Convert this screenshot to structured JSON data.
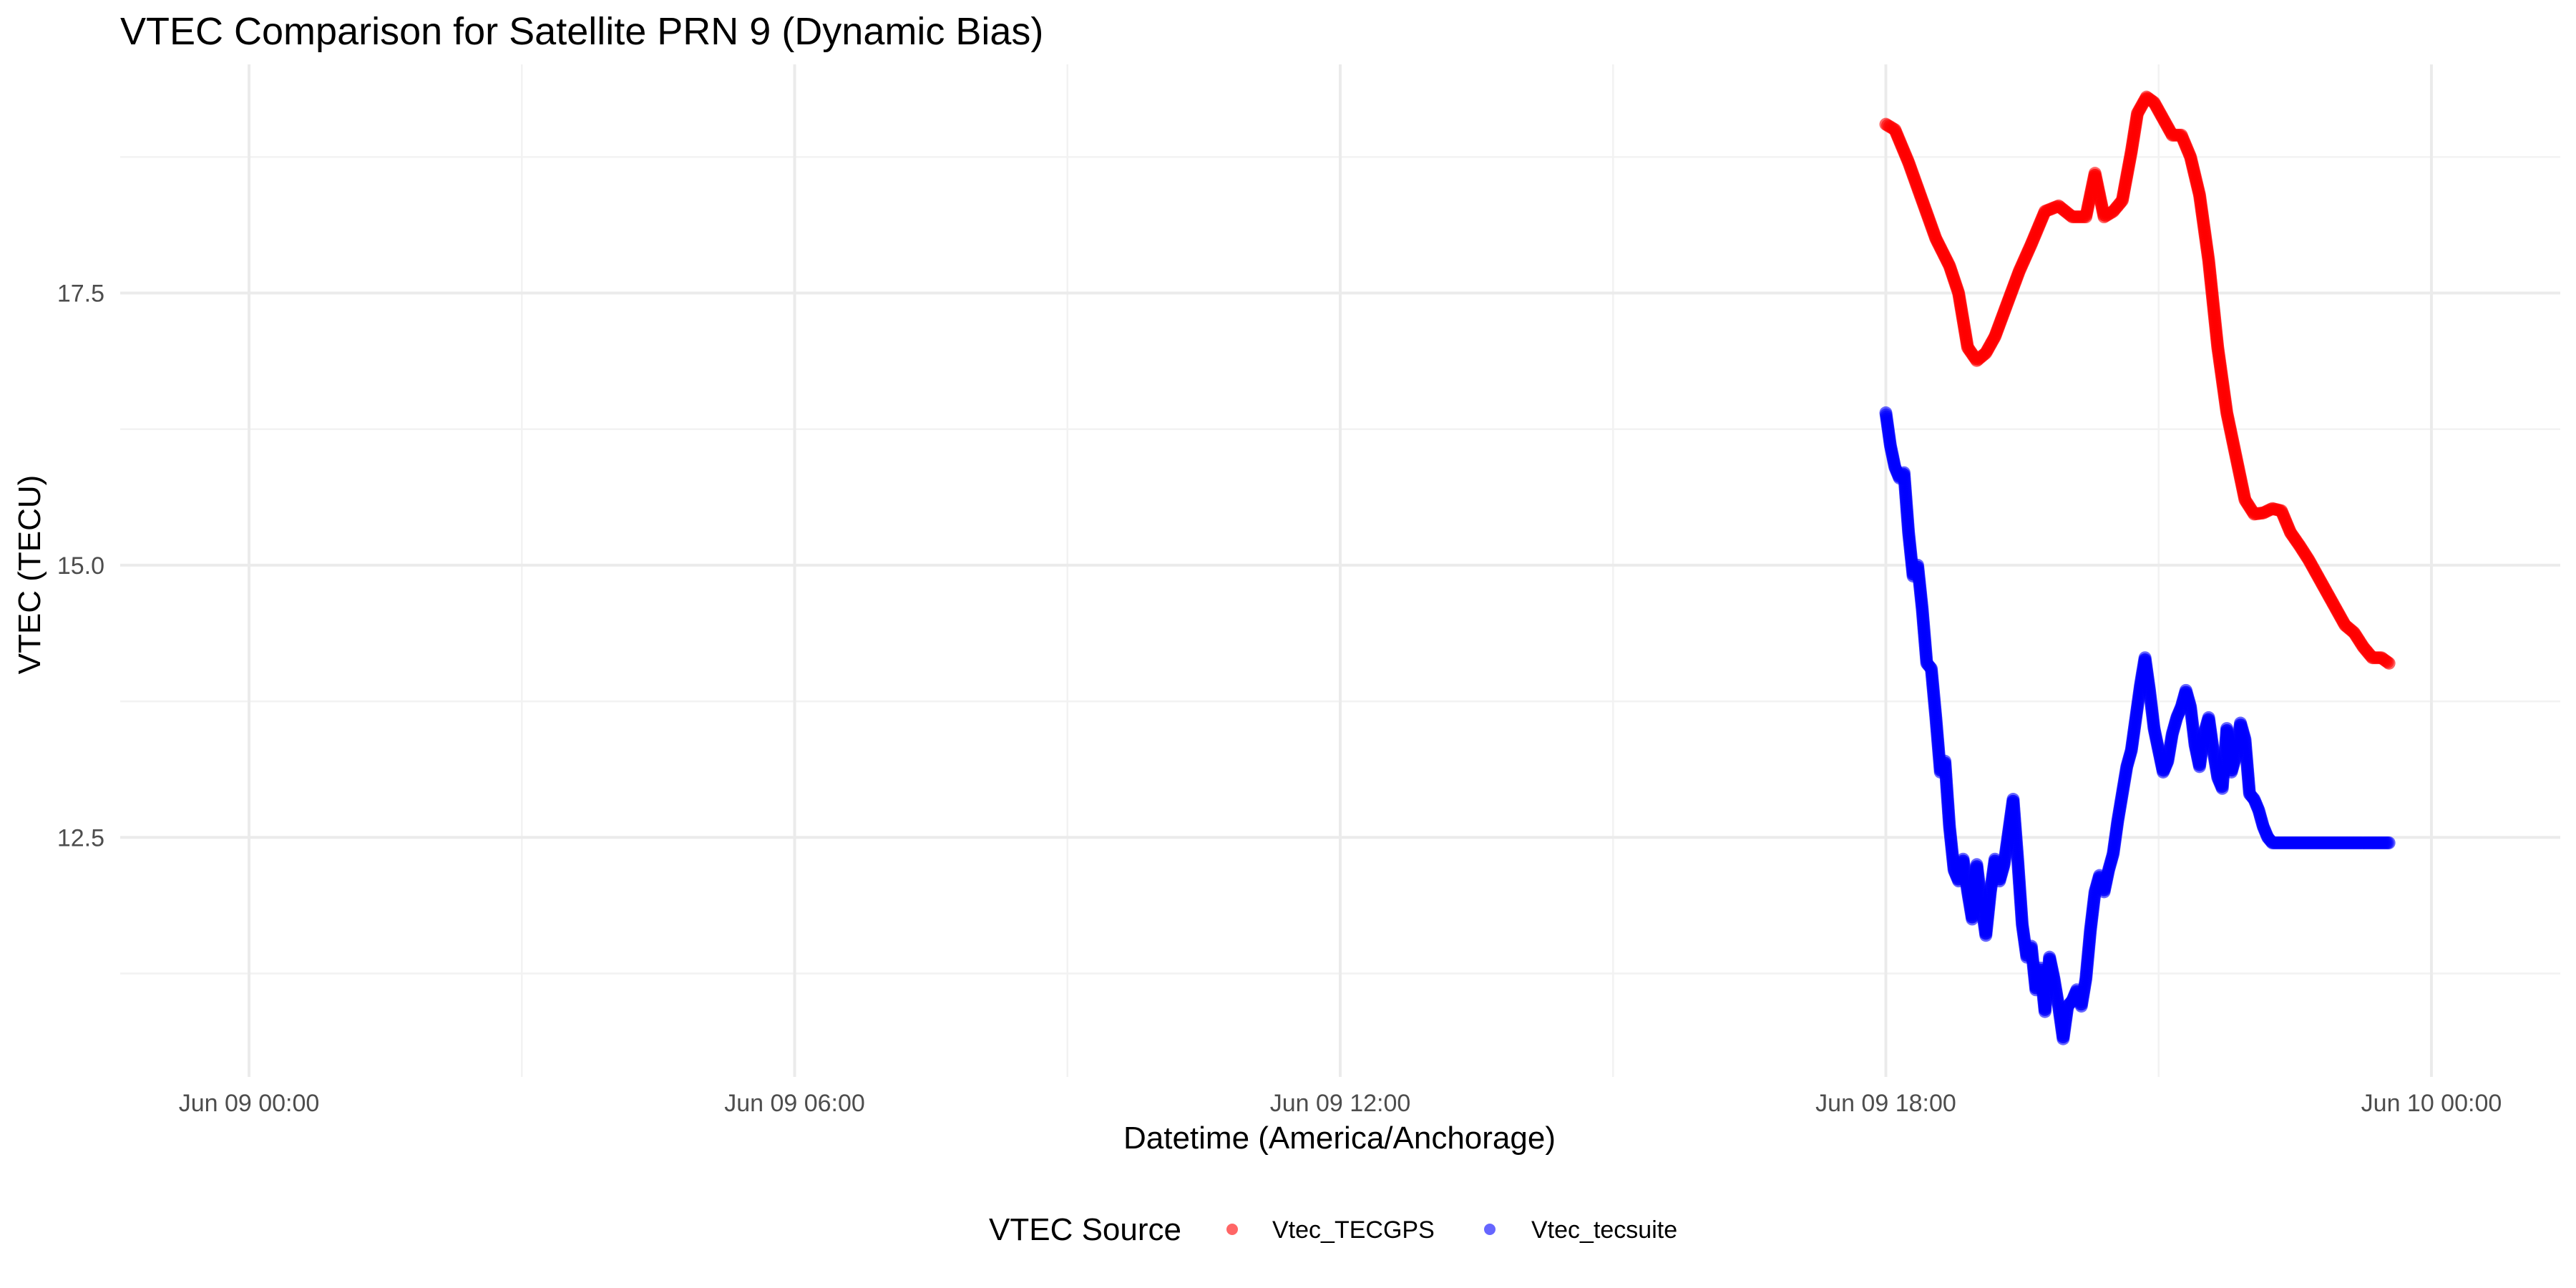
{
  "chart_data": {
    "type": "scatter",
    "title": "VTEC Comparison for Satellite PRN 9 (Dynamic Bias)",
    "xlabel": "Datetime (America/Anchorage)",
    "ylabel": "VTEC (TECU)",
    "x_axis_type": "datetime",
    "xlim": [
      "2024-06-08T22:35",
      "2024-06-10T01:25"
    ],
    "ylim": [
      10.3,
      19.6
    ],
    "x_ticks": [
      {
        "value": "2024-06-09T00:00",
        "label": "Jun 09 00:00"
      },
      {
        "value": "2024-06-09T06:00",
        "label": "Jun 09 06:00"
      },
      {
        "value": "2024-06-09T12:00",
        "label": "Jun 09 12:00"
      },
      {
        "value": "2024-06-09T18:00",
        "label": "Jun 09 18:00"
      },
      {
        "value": "2024-06-10T00:00",
        "label": "Jun 10 00:00"
      }
    ],
    "y_ticks": [
      {
        "value": 12.5,
        "label": "12.5"
      },
      {
        "value": 15.0,
        "label": "15.0"
      },
      {
        "value": 17.5,
        "label": "17.5"
      }
    ],
    "grid": true,
    "legend": {
      "title": "VTEC Source",
      "position": "bottom"
    },
    "series": [
      {
        "name": "Vtec_TECGPS",
        "color": "#ff0000",
        "marker_opacity": 0.6,
        "x": [
          "2024-06-09T18:00",
          "2024-06-09T18:06",
          "2024-06-09T18:15",
          "2024-06-09T18:24",
          "2024-06-09T18:33",
          "2024-06-09T18:42",
          "2024-06-09T18:48",
          "2024-06-09T18:54",
          "2024-06-09T19:00",
          "2024-06-09T19:06",
          "2024-06-09T19:12",
          "2024-06-09T19:20",
          "2024-06-09T19:28",
          "2024-06-09T19:36",
          "2024-06-09T19:45",
          "2024-06-09T19:54",
          "2024-06-09T20:03",
          "2024-06-09T20:12",
          "2024-06-09T20:18",
          "2024-06-09T20:24",
          "2024-06-09T20:30",
          "2024-06-09T20:36",
          "2024-06-09T20:42",
          "2024-06-09T20:46",
          "2024-06-09T20:52",
          "2024-06-09T20:57",
          "2024-06-09T21:03",
          "2024-06-09T21:09",
          "2024-06-09T21:15",
          "2024-06-09T21:21",
          "2024-06-09T21:27",
          "2024-06-09T21:33",
          "2024-06-09T21:39",
          "2024-06-09T21:45",
          "2024-06-09T21:51",
          "2024-06-09T21:57",
          "2024-06-09T22:03",
          "2024-06-09T22:09",
          "2024-06-09T22:15",
          "2024-06-09T22:21",
          "2024-06-09T22:27",
          "2024-06-09T22:33",
          "2024-06-09T22:39",
          "2024-06-09T22:45",
          "2024-06-09T22:51",
          "2024-06-09T22:57",
          "2024-06-09T23:03",
          "2024-06-09T23:09",
          "2024-06-09T23:15",
          "2024-06-09T23:21",
          "2024-06-09T23:27",
          "2024-06-09T23:32"
        ],
        "y": [
          19.05,
          19.0,
          18.7,
          18.35,
          18.0,
          17.75,
          17.5,
          17.0,
          16.88,
          16.95,
          17.1,
          17.4,
          17.7,
          17.95,
          18.25,
          18.3,
          18.2,
          18.2,
          18.6,
          18.2,
          18.25,
          18.35,
          18.8,
          19.15,
          19.3,
          19.25,
          19.1,
          18.95,
          18.95,
          18.75,
          18.4,
          17.8,
          17.0,
          16.4,
          16.0,
          15.6,
          15.47,
          15.48,
          15.52,
          15.5,
          15.3,
          15.18,
          15.05,
          14.9,
          14.75,
          14.6,
          14.45,
          14.38,
          14.25,
          14.15,
          14.15,
          14.1
        ]
      },
      {
        "name": "Vtec_tecsuite",
        "color": "#0000ff",
        "marker_opacity": 0.6,
        "x": [
          "2024-06-09T18:00",
          "2024-06-09T18:03",
          "2024-06-09T18:06",
          "2024-06-09T18:09",
          "2024-06-09T18:12",
          "2024-06-09T18:15",
          "2024-06-09T18:18",
          "2024-06-09T18:21",
          "2024-06-09T18:24",
          "2024-06-09T18:27",
          "2024-06-09T18:30",
          "2024-06-09T18:33",
          "2024-06-09T18:36",
          "2024-06-09T18:39",
          "2024-06-09T18:42",
          "2024-06-09T18:45",
          "2024-06-09T18:48",
          "2024-06-09T18:51",
          "2024-06-09T18:54",
          "2024-06-09T18:57",
          "2024-06-09T19:00",
          "2024-06-09T19:03",
          "2024-06-09T19:06",
          "2024-06-09T19:09",
          "2024-06-09T19:12",
          "2024-06-09T19:15",
          "2024-06-09T19:18",
          "2024-06-09T19:21",
          "2024-06-09T19:24",
          "2024-06-09T19:27",
          "2024-06-09T19:30",
          "2024-06-09T19:33",
          "2024-06-09T19:36",
          "2024-06-09T19:39",
          "2024-06-09T19:42",
          "2024-06-09T19:45",
          "2024-06-09T19:48",
          "2024-06-09T19:51",
          "2024-06-09T19:54",
          "2024-06-09T19:57",
          "2024-06-09T20:00",
          "2024-06-09T20:03",
          "2024-06-09T20:06",
          "2024-06-09T20:09",
          "2024-06-09T20:12",
          "2024-06-09T20:15",
          "2024-06-09T20:18",
          "2024-06-09T20:21",
          "2024-06-09T20:24",
          "2024-06-09T20:27",
          "2024-06-09T20:30",
          "2024-06-09T20:33",
          "2024-06-09T20:36",
          "2024-06-09T20:39",
          "2024-06-09T20:42",
          "2024-06-09T20:45",
          "2024-06-09T20:48",
          "2024-06-09T20:51",
          "2024-06-09T20:54",
          "2024-06-09T20:57",
          "2024-06-09T21:00",
          "2024-06-09T21:03",
          "2024-06-09T21:06",
          "2024-06-09T21:09",
          "2024-06-09T21:12",
          "2024-06-09T21:15",
          "2024-06-09T21:18",
          "2024-06-09T21:21",
          "2024-06-09T21:24",
          "2024-06-09T21:27",
          "2024-06-09T21:30",
          "2024-06-09T21:33",
          "2024-06-09T21:36",
          "2024-06-09T21:39",
          "2024-06-09T21:42",
          "2024-06-09T21:45",
          "2024-06-09T21:48",
          "2024-06-09T21:51",
          "2024-06-09T21:54",
          "2024-06-09T21:57",
          "2024-06-09T22:00",
          "2024-06-09T22:03",
          "2024-06-09T22:06",
          "2024-06-09T22:09",
          "2024-06-09T22:12",
          "2024-06-09T22:15",
          "2024-06-09T22:18",
          "2024-06-09T22:21",
          "2024-06-09T22:24",
          "2024-06-09T22:27",
          "2024-06-09T22:30",
          "2024-06-09T22:33",
          "2024-06-09T22:36",
          "2024-06-09T22:39",
          "2024-06-09T22:42",
          "2024-06-09T22:45",
          "2024-06-09T22:48",
          "2024-06-09T22:51",
          "2024-06-09T22:54",
          "2024-06-09T22:57",
          "2024-06-09T23:00",
          "2024-06-09T23:03",
          "2024-06-09T23:06",
          "2024-06-09T23:09",
          "2024-06-09T23:12",
          "2024-06-09T23:15",
          "2024-06-09T23:18",
          "2024-06-09T23:21",
          "2024-06-09T23:24",
          "2024-06-09T23:27",
          "2024-06-09T23:30",
          "2024-06-09T23:32"
        ],
        "y": [
          16.4,
          16.1,
          15.9,
          15.8,
          15.85,
          15.3,
          14.9,
          15.0,
          14.6,
          14.1,
          14.05,
          13.6,
          13.1,
          13.2,
          12.6,
          12.2,
          12.1,
          12.3,
          12.0,
          11.75,
          12.25,
          11.9,
          11.6,
          12.0,
          12.3,
          12.1,
          12.25,
          12.55,
          12.85,
          12.3,
          11.7,
          11.4,
          11.5,
          11.1,
          11.3,
          10.9,
          11.4,
          11.2,
          10.95,
          10.65,
          10.95,
          11.0,
          11.1,
          10.95,
          11.2,
          11.65,
          12.0,
          12.15,
          12.0,
          12.2,
          12.35,
          12.65,
          12.9,
          13.15,
          13.3,
          13.6,
          13.9,
          14.15,
          13.85,
          13.5,
          13.3,
          13.1,
          13.2,
          13.45,
          13.6,
          13.7,
          13.85,
          13.7,
          13.35,
          13.15,
          13.45,
          13.6,
          13.3,
          13.05,
          12.95,
          13.5,
          13.1,
          13.25,
          13.55,
          13.4,
          12.9,
          12.85,
          12.75,
          12.6,
          12.5,
          12.45,
          12.45,
          12.45,
          12.45,
          12.45,
          12.45,
          12.45,
          12.45,
          12.45,
          12.45,
          12.45,
          12.45,
          12.45,
          12.45,
          12.45,
          12.45,
          12.45,
          12.45,
          12.45,
          12.45,
          12.45,
          12.45,
          12.45,
          12.45,
          12.45,
          12.45,
          12.45
        ]
      }
    ]
  }
}
